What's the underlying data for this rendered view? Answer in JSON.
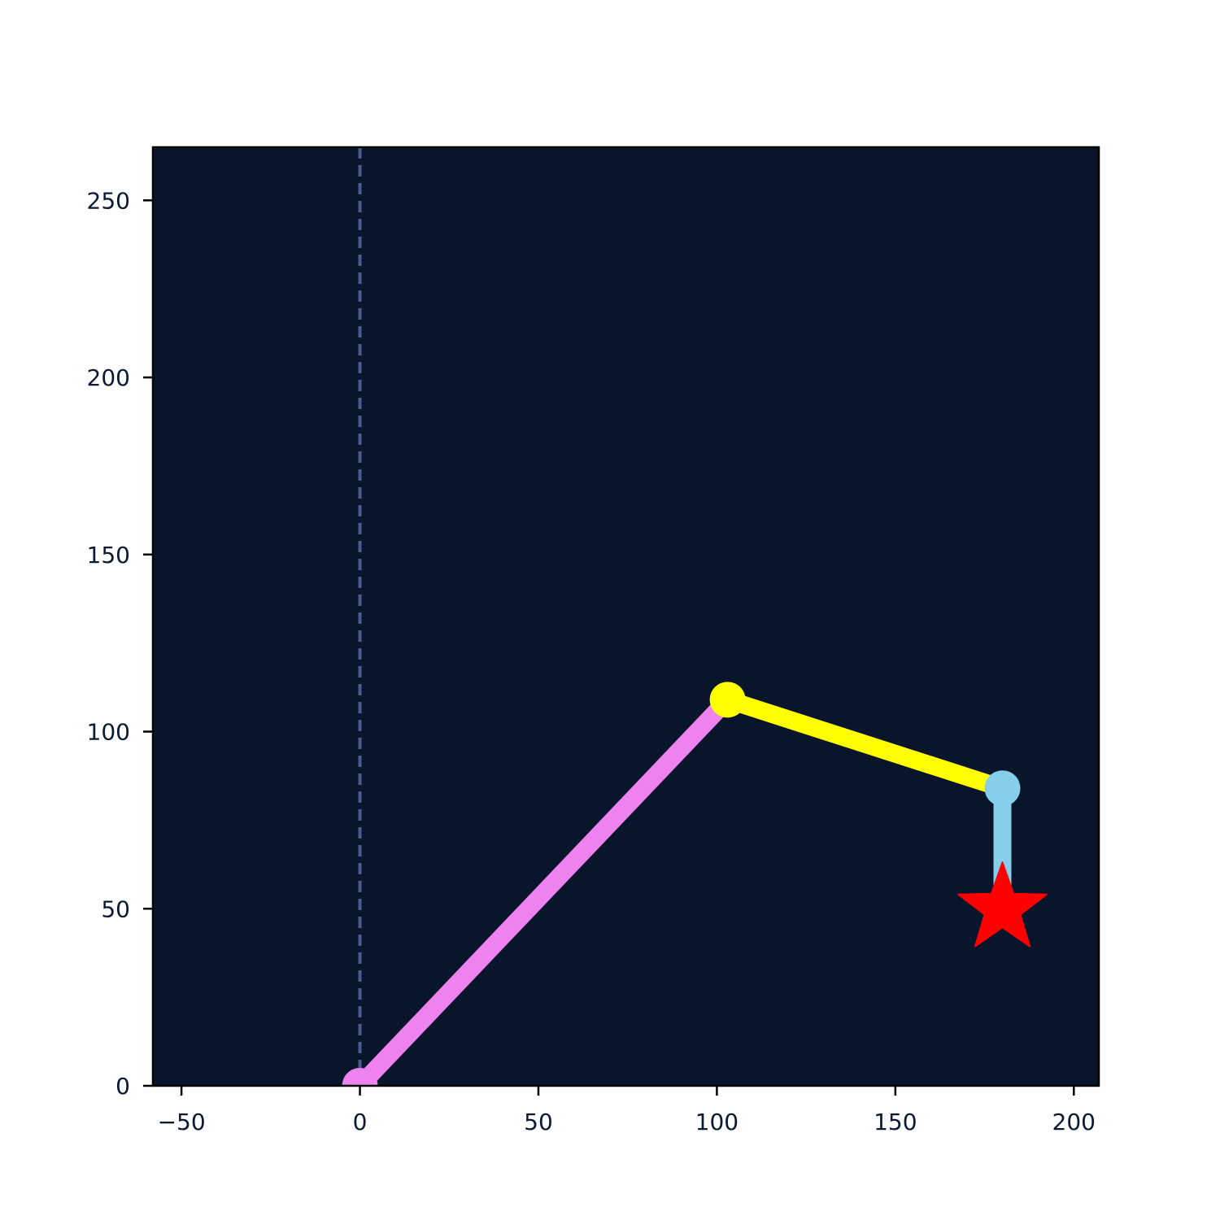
{
  "chart_data": {
    "type": "line",
    "title": "",
    "xlabel": "",
    "ylabel": "",
    "xlim": [
      -58,
      207
    ],
    "ylim": [
      0,
      265
    ],
    "x_ticks": [
      -50,
      0,
      50,
      100,
      150,
      200
    ],
    "x_tick_labels": [
      "−50",
      "0",
      "50",
      "100",
      "150",
      "200"
    ],
    "y_ticks": [
      0,
      50,
      100,
      150,
      200,
      250
    ],
    "y_tick_labels": [
      "0",
      "50",
      "100",
      "150",
      "200",
      "250"
    ],
    "grid": false,
    "legend": "none",
    "background_color": "#08152b",
    "reference_line": {
      "x": 0,
      "style": "dashed",
      "color": "#4f5b93"
    },
    "series": [
      {
        "color": "#ee82ee",
        "points": [
          [
            0,
            0
          ],
          [
            103,
            109
          ]
        ]
      },
      {
        "color": "#ffff00",
        "points": [
          [
            103,
            109
          ],
          [
            180,
            84
          ]
        ]
      },
      {
        "color": "#87ceeb",
        "points": [
          [
            180,
            84
          ],
          [
            180,
            50
          ]
        ]
      }
    ],
    "joints": [
      {
        "x": 0,
        "y": 0,
        "color": "#ee82ee"
      },
      {
        "x": 103,
        "y": 109,
        "color": "#ffff00"
      },
      {
        "x": 180,
        "y": 84,
        "color": "#87ceeb"
      }
    ],
    "target": {
      "x": 180,
      "y": 50,
      "marker": "star",
      "color": "#ff0000"
    }
  }
}
